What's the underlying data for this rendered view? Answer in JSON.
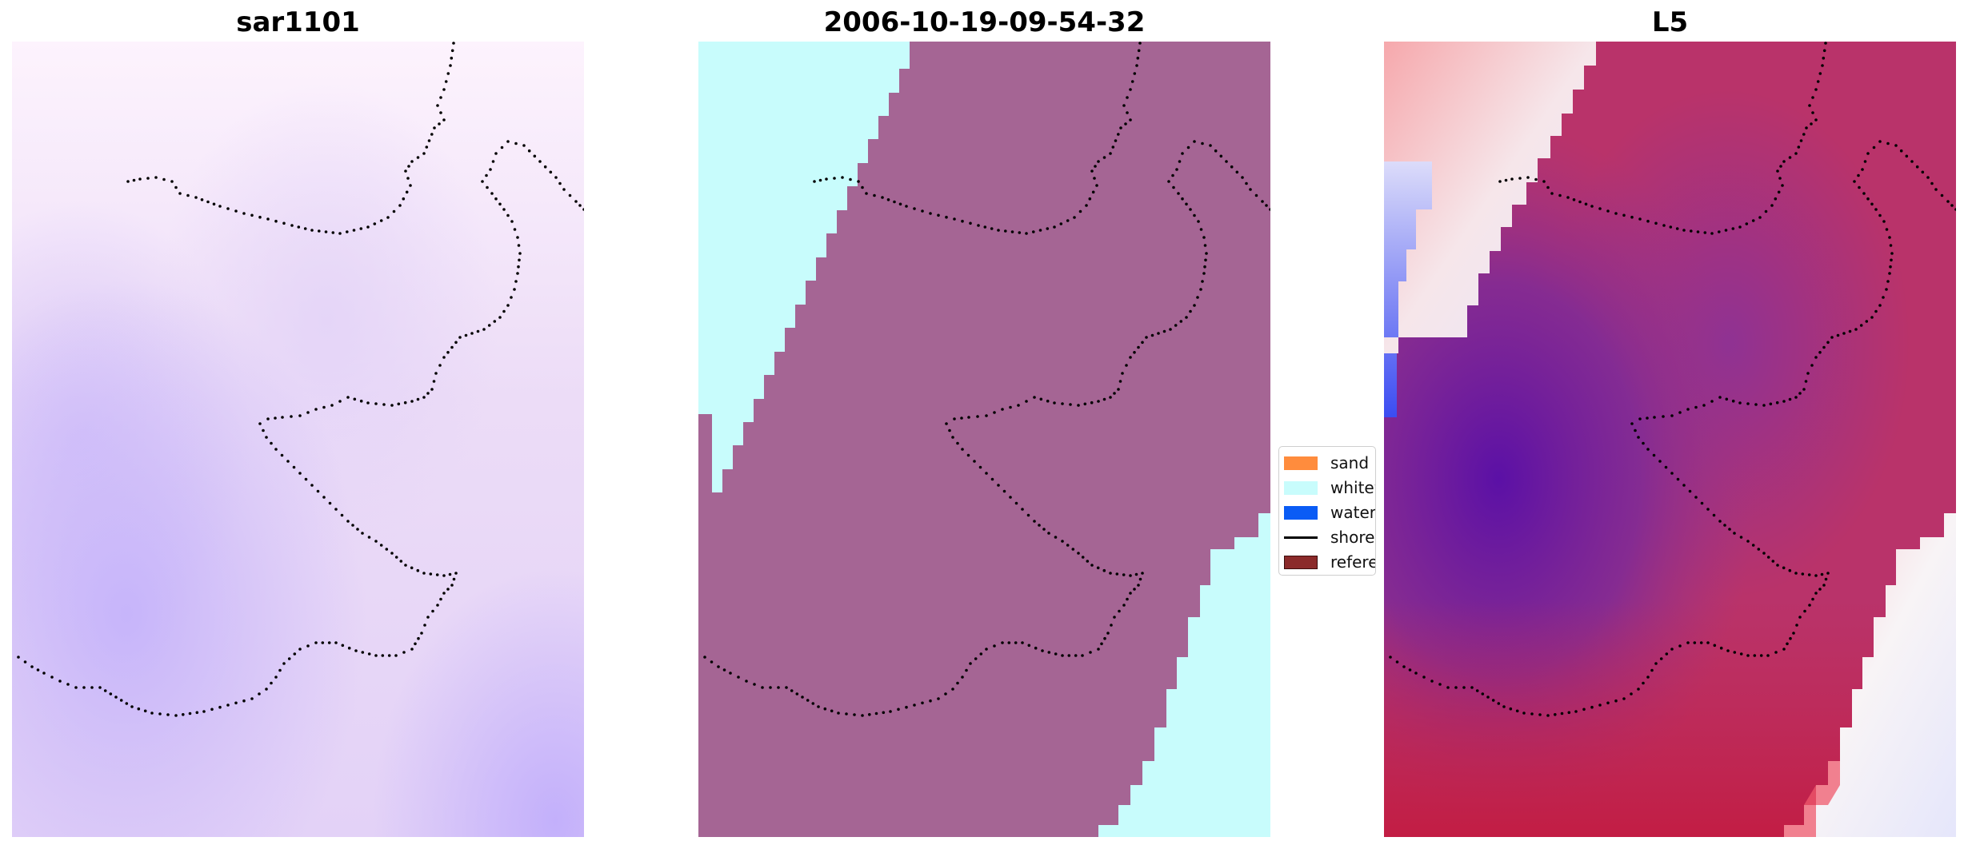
{
  "panels": [
    {
      "title": "sar1101"
    },
    {
      "title": "2006-10-19-09-54-32"
    },
    {
      "title": "L5"
    }
  ],
  "legend": {
    "items": [
      {
        "label": "sand",
        "color": "#ff8c3d",
        "kind": "patch"
      },
      {
        "label": "whitew",
        "color": "#c8fcfc",
        "kind": "patch"
      },
      {
        "label": "water",
        "color": "#0a5cf5",
        "kind": "patch"
      },
      {
        "label": "shorel",
        "color": "#000000",
        "kind": "line"
      },
      {
        "label": "referer",
        "color": "#8b2a2a",
        "kind": "patch"
      }
    ]
  },
  "colors": {
    "sar_light": "#fdf3fd",
    "sar_mid": "#e7d6f7",
    "sar_dark": "#cab6fb",
    "classified_land": "#a56594",
    "classified_whitewater": "#c8fcfc",
    "l5_red": "#c2274f",
    "l5_purple": "#6a1aa8",
    "l5_white": "#f8f4f6",
    "l5_blue": "#3b4cf2",
    "shoreline": "#000000"
  },
  "chart_data": [
    {
      "type": "heatmap",
      "title": "sar1101",
      "legend": "none",
      "grid": false
    },
    {
      "type": "heatmap",
      "title": "2006-10-19-09-54-32",
      "legend": "center-right",
      "legend_entries": [
        "sand",
        "whitew",
        "water",
        "shorel",
        "referer"
      ],
      "grid": false
    },
    {
      "type": "heatmap",
      "title": "L5",
      "legend": "none",
      "grid": false
    }
  ]
}
